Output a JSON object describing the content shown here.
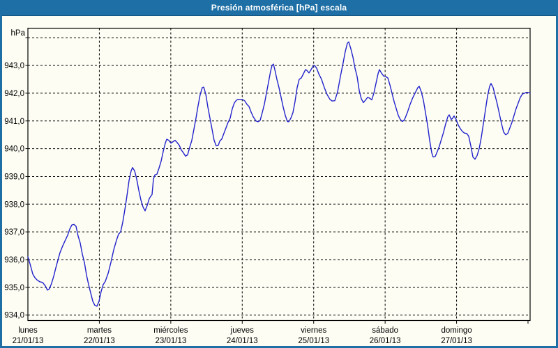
{
  "window": {
    "title": "Presión atmosférica [hPa] escala"
  },
  "colors": {
    "titlebar_bg": "#1d6fa5",
    "titlebar_text": "#ffffff",
    "window_border": "#1d6fa5",
    "page_bg": "#fdfdf4",
    "line": "#2222cc",
    "grid": "#000000",
    "frame": "#000000",
    "axis_text": "#000000"
  },
  "chart_data": {
    "type": "line",
    "title": "Presión atmosférica [hPa] escala",
    "y_unit_label": "hPa",
    "ylim": [
      934,
      944
    ],
    "grid": true,
    "legend": "none",
    "y_ticks": [
      {
        "label": "943,0",
        "value": 943
      },
      {
        "label": "942,0",
        "value": 942
      },
      {
        "label": "941,0",
        "value": 941
      },
      {
        "label": "940,0",
        "value": 940
      },
      {
        "label": "939,0",
        "value": 939
      },
      {
        "label": "938,0",
        "value": 938
      },
      {
        "label": "937,0",
        "value": 937
      },
      {
        "label": "936,0",
        "value": 936
      },
      {
        "label": "935,0",
        "value": 935
      },
      {
        "label": "934,0",
        "value": 934
      }
    ],
    "y_grid_values": [
      934,
      935,
      936,
      937,
      938,
      939,
      940,
      941,
      942,
      943,
      944
    ],
    "x_days": [
      {
        "name": "lunes",
        "date": "21/01/13"
      },
      {
        "name": "martes",
        "date": "22/01/13"
      },
      {
        "name": "miércoles",
        "date": "23/01/13"
      },
      {
        "name": "jueves",
        "date": "24/01/13"
      },
      {
        "name": "viernes",
        "date": "25/01/13"
      },
      {
        "name": "sábado",
        "date": "26/01/13"
      },
      {
        "name": "domingo",
        "date": "27/01/13"
      }
    ],
    "x_axis": {
      "start_date": "21/01/13",
      "days": 7,
      "note": "points given as [x_px, hPa]; x0_px=40 is 21/01 00:00, 102.43 px per day"
    },
    "series": [
      {
        "name": "Presión atmosférica",
        "points": [
          [
            40,
            936.1
          ],
          [
            43,
            935.85
          ],
          [
            47,
            935.48
          ],
          [
            50,
            935.35
          ],
          [
            53,
            935.27
          ],
          [
            57,
            935.2
          ],
          [
            61,
            935.18
          ],
          [
            65,
            935.05
          ],
          [
            68,
            934.9
          ],
          [
            71,
            934.95
          ],
          [
            74,
            935.15
          ],
          [
            77,
            935.4
          ],
          [
            80,
            935.7
          ],
          [
            83,
            935.98
          ],
          [
            86,
            936.25
          ],
          [
            90,
            936.5
          ],
          [
            94,
            936.72
          ],
          [
            97,
            936.88
          ],
          [
            100,
            937.1
          ],
          [
            103,
            937.25
          ],
          [
            106,
            937.27
          ],
          [
            109,
            937.2
          ],
          [
            112,
            936.85
          ],
          [
            115,
            936.6
          ],
          [
            118,
            936.2
          ],
          [
            121,
            935.9
          ],
          [
            124,
            935.45
          ],
          [
            127,
            935.1
          ],
          [
            130,
            934.8
          ],
          [
            133,
            934.5
          ],
          [
            136,
            934.35
          ],
          [
            139,
            934.32
          ],
          [
            142,
            934.5
          ],
          [
            145,
            934.85
          ],
          [
            148,
            935.1
          ],
          [
            151,
            935.22
          ],
          [
            155,
            935.5
          ],
          [
            159,
            935.9
          ],
          [
            163,
            936.35
          ],
          [
            167,
            936.7
          ],
          [
            170,
            936.92
          ],
          [
            173,
            937.0
          ],
          [
            176,
            937.35
          ],
          [
            179,
            937.8
          ],
          [
            182,
            938.3
          ],
          [
            185,
            938.85
          ],
          [
            188,
            939.2
          ],
          [
            190,
            939.32
          ],
          [
            193,
            939.2
          ],
          [
            196,
            938.9
          ],
          [
            199,
            938.5
          ],
          [
            202,
            938.15
          ],
          [
            205,
            937.9
          ],
          [
            208,
            937.76
          ],
          [
            211,
            937.95
          ],
          [
            214,
            938.2
          ],
          [
            216,
            938.28
          ],
          [
            218,
            938.35
          ],
          [
            220,
            938.9
          ],
          [
            222,
            939.05
          ],
          [
            225,
            939.08
          ],
          [
            228,
            939.3
          ],
          [
            231,
            939.55
          ],
          [
            234,
            939.9
          ],
          [
            237,
            940.2
          ],
          [
            239,
            940.34
          ],
          [
            242,
            940.3
          ],
          [
            245,
            940.2
          ],
          [
            248,
            940.25
          ],
          [
            251,
            940.3
          ],
          [
            254,
            940.22
          ],
          [
            257,
            940.12
          ],
          [
            260,
            939.95
          ],
          [
            263,
            939.85
          ],
          [
            266,
            939.73
          ],
          [
            269,
            939.78
          ],
          [
            272,
            940.05
          ],
          [
            275,
            940.3
          ],
          [
            278,
            940.7
          ],
          [
            281,
            941.1
          ],
          [
            284,
            941.55
          ],
          [
            287,
            941.95
          ],
          [
            290,
            942.2
          ],
          [
            292,
            942.22
          ],
          [
            295,
            941.97
          ],
          [
            298,
            941.5
          ],
          [
            301,
            941.1
          ],
          [
            304,
            940.7
          ],
          [
            307,
            940.3
          ],
          [
            310,
            940.1
          ],
          [
            313,
            940.12
          ],
          [
            315,
            940.27
          ],
          [
            318,
            940.35
          ],
          [
            321,
            940.55
          ],
          [
            324,
            940.75
          ],
          [
            327,
            940.95
          ],
          [
            330,
            941.1
          ],
          [
            333,
            941.44
          ],
          [
            336,
            941.65
          ],
          [
            339,
            941.75
          ],
          [
            342,
            941.78
          ],
          [
            345,
            941.78
          ],
          [
            348,
            941.77
          ],
          [
            351,
            941.72
          ],
          [
            354,
            941.6
          ],
          [
            357,
            941.52
          ],
          [
            360,
            941.32
          ],
          [
            363,
            941.15
          ],
          [
            367,
            941.0
          ],
          [
            370,
            940.97
          ],
          [
            373,
            941.02
          ],
          [
            376,
            941.3
          ],
          [
            379,
            941.6
          ],
          [
            382,
            942.0
          ],
          [
            385,
            942.4
          ],
          [
            388,
            942.8
          ],
          [
            390,
            943.0
          ],
          [
            392,
            943.05
          ],
          [
            394,
            942.85
          ],
          [
            397,
            942.5
          ],
          [
            400,
            942.2
          ],
          [
            403,
            941.85
          ],
          [
            406,
            941.5
          ],
          [
            409,
            941.2
          ],
          [
            412,
            940.98
          ],
          [
            414,
            940.97
          ],
          [
            417,
            941.1
          ],
          [
            420,
            941.3
          ],
          [
            423,
            941.7
          ],
          [
            426,
            942.2
          ],
          [
            429,
            942.5
          ],
          [
            432,
            942.55
          ],
          [
            435,
            942.7
          ],
          [
            438,
            942.85
          ],
          [
            440,
            942.82
          ],
          [
            443,
            942.73
          ],
          [
            446,
            942.85
          ],
          [
            449,
            942.98
          ],
          [
            451,
            943.0
          ],
          [
            454,
            942.9
          ],
          [
            457,
            942.7
          ],
          [
            461,
            942.5
          ],
          [
            465,
            942.2
          ],
          [
            469,
            941.95
          ],
          [
            473,
            941.78
          ],
          [
            476,
            941.72
          ],
          [
            480,
            941.73
          ],
          [
            484,
            942.05
          ],
          [
            488,
            942.6
          ],
          [
            492,
            943.1
          ],
          [
            495,
            943.5
          ],
          [
            498,
            943.8
          ],
          [
            500,
            943.85
          ],
          [
            503,
            943.6
          ],
          [
            506,
            943.3
          ],
          [
            509,
            942.9
          ],
          [
            512,
            942.6
          ],
          [
            515,
            942.1
          ],
          [
            518,
            941.8
          ],
          [
            521,
            941.66
          ],
          [
            524,
            941.75
          ],
          [
            527,
            941.85
          ],
          [
            530,
            941.82
          ],
          [
            533,
            941.76
          ],
          [
            536,
            942.0
          ],
          [
            539,
            942.35
          ],
          [
            542,
            942.7
          ],
          [
            544,
            942.85
          ],
          [
            547,
            942.72
          ],
          [
            550,
            942.62
          ],
          [
            553,
            942.6
          ],
          [
            556,
            942.55
          ],
          [
            559,
            942.3
          ],
          [
            562,
            942.0
          ],
          [
            565,
            941.7
          ],
          [
            568,
            941.45
          ],
          [
            571,
            941.2
          ],
          [
            574,
            941.05
          ],
          [
            577,
            940.98
          ],
          [
            580,
            941.05
          ],
          [
            584,
            941.3
          ],
          [
            588,
            941.6
          ],
          [
            592,
            941.85
          ],
          [
            596,
            942.05
          ],
          [
            599,
            942.2
          ],
          [
            601,
            942.25
          ],
          [
            604,
            942.05
          ],
          [
            607,
            941.75
          ],
          [
            610,
            941.3
          ],
          [
            613,
            940.85
          ],
          [
            616,
            940.3
          ],
          [
            619,
            939.85
          ],
          [
            621,
            939.7
          ],
          [
            624,
            939.72
          ],
          [
            627,
            939.9
          ],
          [
            630,
            940.1
          ],
          [
            633,
            940.35
          ],
          [
            636,
            940.6
          ],
          [
            639,
            940.9
          ],
          [
            642,
            941.15
          ],
          [
            644,
            941.22
          ],
          [
            647,
            941.05
          ],
          [
            649,
            941.1
          ],
          [
            651,
            941.18
          ],
          [
            654,
            941.05
          ],
          [
            657,
            940.85
          ],
          [
            660,
            940.72
          ],
          [
            663,
            940.62
          ],
          [
            666,
            940.56
          ],
          [
            669,
            940.55
          ],
          [
            672,
            940.45
          ],
          [
            675,
            940.1
          ],
          [
            678,
            939.7
          ],
          [
            681,
            939.62
          ],
          [
            684,
            939.75
          ],
          [
            687,
            940.0
          ],
          [
            690,
            940.4
          ],
          [
            693,
            940.9
          ],
          [
            696,
            941.4
          ],
          [
            699,
            941.9
          ],
          [
            702,
            942.25
          ],
          [
            704,
            942.35
          ],
          [
            707,
            942.2
          ],
          [
            710,
            941.9
          ],
          [
            713,
            941.6
          ],
          [
            716,
            941.25
          ],
          [
            719,
            940.9
          ],
          [
            722,
            940.6
          ],
          [
            725,
            940.5
          ],
          [
            728,
            940.55
          ],
          [
            731,
            940.75
          ],
          [
            734,
            940.95
          ],
          [
            737,
            941.2
          ],
          [
            740,
            941.45
          ],
          [
            743,
            941.65
          ],
          [
            746,
            941.85
          ],
          [
            749,
            941.97
          ],
          [
            752,
            942.0
          ],
          [
            755,
            942.03
          ],
          [
            758,
            942.02
          ],
          [
            760,
            942.0
          ]
        ]
      }
    ]
  }
}
